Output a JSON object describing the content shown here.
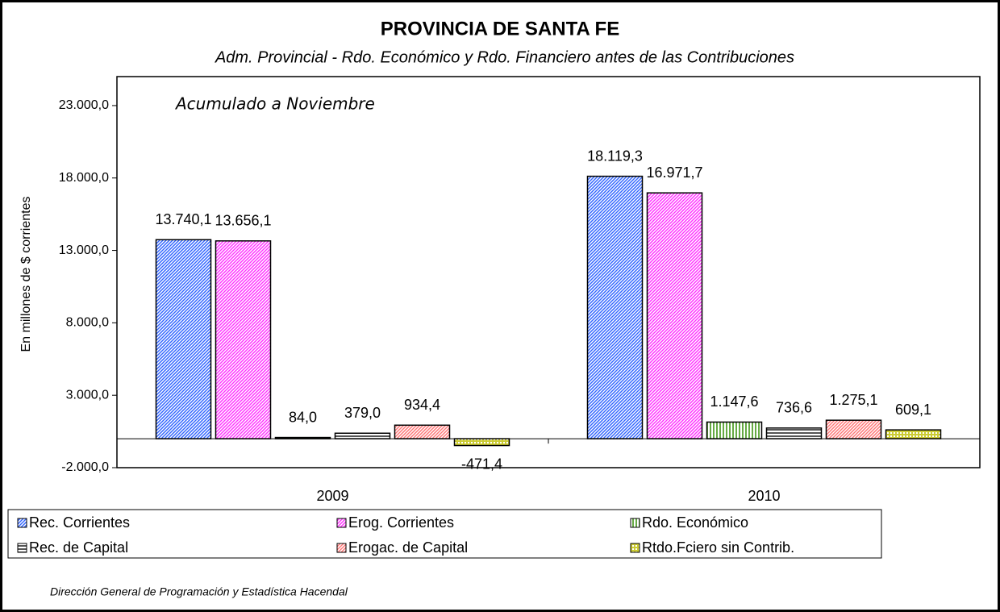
{
  "chart_data": {
    "type": "bar",
    "title": "PROVINCIA DE SANTA FE",
    "subtitle": "Adm. Provincial - Rdo. Económico y Rdo. Financiero antes de las Contribuciones",
    "annotation": "Acumulado a Noviembre",
    "y_axis_label": "En millones de $ corrientes",
    "source": "Dirección General de Programación y Estadística Hacendal",
    "categories": [
      "2009",
      "2010"
    ],
    "series": [
      {
        "name": "Rec. Corrientes",
        "color": "#3366ff",
        "values": [
          13740.1,
          18119.3
        ],
        "value_labels": [
          "13.740,1",
          "18.119,3"
        ]
      },
      {
        "name": "Erog. Corrientes",
        "color": "#ff33ff",
        "values": [
          13656.1,
          16971.7
        ],
        "value_labels": [
          "13.656,1",
          "16.971,7"
        ]
      },
      {
        "name": "Rdo. Económico",
        "color": "#66aa44",
        "values": [
          84.0,
          1147.6
        ],
        "value_labels": [
          "84,0",
          "1.147,6"
        ]
      },
      {
        "name": "Rec. de Capital",
        "color": "#555555",
        "values": [
          379.0,
          736.6
        ],
        "value_labels": [
          "379,0",
          "736,6"
        ]
      },
      {
        "name": "Erogac. de Capital",
        "color": "#ff7777",
        "values": [
          934.4,
          1275.1
        ],
        "value_labels": [
          "934,4",
          "1.275,1"
        ]
      },
      {
        "name": "Rtdo.Fciero sin Contrib.",
        "color": "#cccc33",
        "values": [
          -471.4,
          609.1
        ],
        "value_labels": [
          "-471,4",
          "609,1"
        ]
      }
    ],
    "ylim": [
      -2000,
      25000
    ],
    "yticks": [
      {
        "value": -2000,
        "label": "-2.000,0"
      },
      {
        "value": 3000,
        "label": "3.000,0"
      },
      {
        "value": 8000,
        "label": "8.000,0"
      },
      {
        "value": 13000,
        "label": "13.000,0"
      },
      {
        "value": 18000,
        "label": "18.000,0"
      },
      {
        "value": 23000,
        "label": "23.000,0"
      }
    ],
    "grid": false
  }
}
